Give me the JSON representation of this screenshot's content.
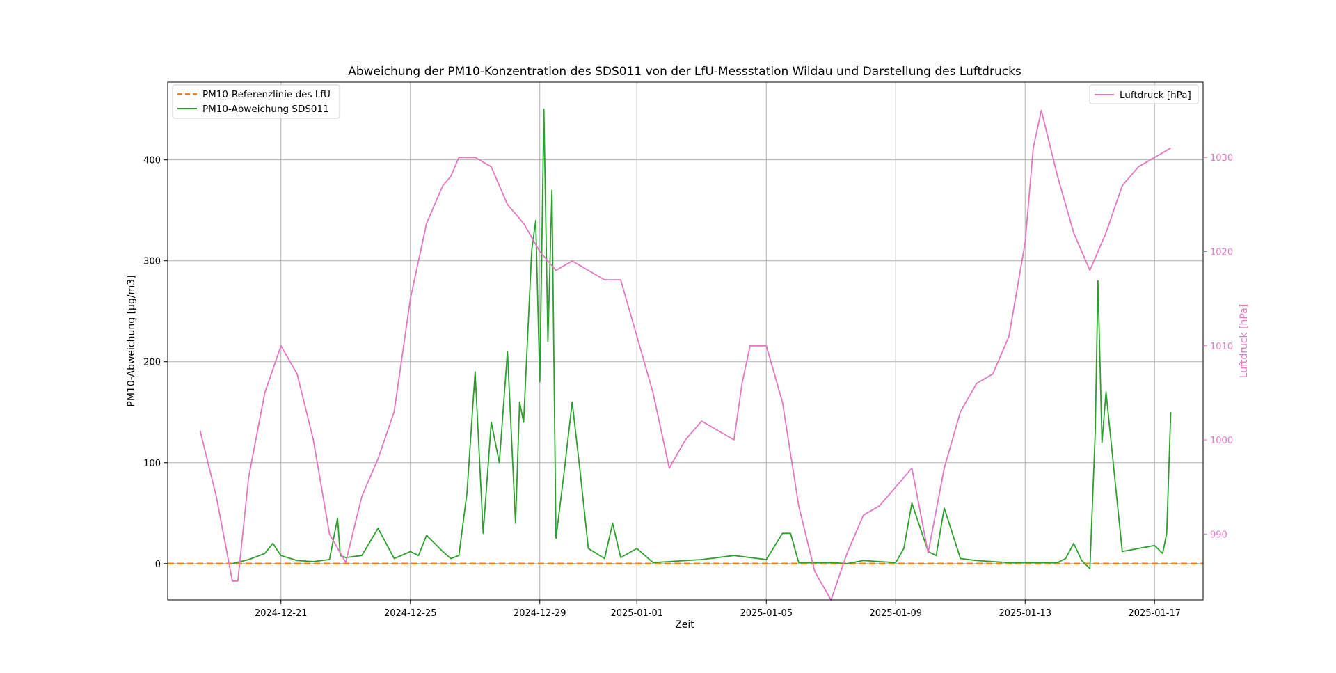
{
  "chart_data": {
    "type": "line",
    "title": "Abweichung der PM10-Konzentration des SDS011 von der LfU-Messstation Wildau und Darstellung des Luftdrucks",
    "xlabel": "Zeit",
    "ylabel": "PM10-Abweichung [µg/m3]",
    "y2label": "Luftdruck [hPa]",
    "xlim": [
      "2024-12-17T12:00",
      "2025-01-18T12:00"
    ],
    "ylim": [
      -36,
      477
    ],
    "y2lim": [
      983,
      1038
    ],
    "x_ticks": [
      "2024-12-21",
      "2024-12-25",
      "2024-12-29",
      "2025-01-01",
      "2025-01-05",
      "2025-01-09",
      "2025-01-13",
      "2025-01-17"
    ],
    "y_ticks": [
      0,
      100,
      200,
      300,
      400
    ],
    "y2_ticks": [
      990,
      1000,
      1010,
      1020,
      1030
    ],
    "grid": true,
    "colors": {
      "reference": "#ff7f0e",
      "deviation": "#2ca02c",
      "pressure": "#e377c2"
    },
    "legend_left": {
      "placement": "top-left",
      "entries": [
        "PM10-Referenzlinie des LfU",
        "PM10-Abweichung SDS011"
      ]
    },
    "legend_right": {
      "placement": "top-right",
      "entries": [
        "Luftdruck [hPa]"
      ]
    },
    "series": [
      {
        "name": "PM10-Referenzlinie des LfU",
        "axis": "left",
        "style": "dashed",
        "x": [
          "2024-12-17T12:00",
          "2025-01-18T12:00"
        ],
        "y": [
          0,
          0
        ]
      },
      {
        "name": "PM10-Abweichung SDS011",
        "axis": "left",
        "x": [
          "2024-12-19T12:00",
          "2024-12-20T00:00",
          "2024-12-20T12:00",
          "2024-12-20T18:00",
          "2024-12-21T00:00",
          "2024-12-21T12:00",
          "2024-12-22T00:00",
          "2024-12-22T12:00",
          "2024-12-22T18:00",
          "2024-12-22T20:00",
          "2024-12-23T00:00",
          "2024-12-23T12:00",
          "2024-12-24T00:00",
          "2024-12-24T12:00",
          "2024-12-25T00:00",
          "2024-12-25T06:00",
          "2024-12-25T12:00",
          "2024-12-26T00:00",
          "2024-12-26T06:00",
          "2024-12-26T12:00",
          "2024-12-26T18:00",
          "2024-12-27T00:00",
          "2024-12-27T06:00",
          "2024-12-27T12:00",
          "2024-12-27T18:00",
          "2024-12-28T00:00",
          "2024-12-28T06:00",
          "2024-12-28T09:00",
          "2024-12-28T12:00",
          "2024-12-28T18:00",
          "2024-12-28T21:00",
          "2024-12-29T00:00",
          "2024-12-29T03:00",
          "2024-12-29T06:00",
          "2024-12-29T09:00",
          "2024-12-29T12:00",
          "2024-12-29T18:00",
          "2024-12-30T00:00",
          "2024-12-30T06:00",
          "2024-12-30T12:00",
          "2024-12-31T00:00",
          "2024-12-31T06:00",
          "2024-12-31T12:00",
          "2025-01-01T00:00",
          "2025-01-01T12:00",
          "2025-01-02T00:00",
          "2025-01-02T12:00",
          "2025-01-03T00:00",
          "2025-01-04T00:00",
          "2025-01-05T00:00",
          "2025-01-05T12:00",
          "2025-01-05T18:00",
          "2025-01-06T00:00",
          "2025-01-06T12:00",
          "2025-01-07T00:00",
          "2025-01-07T12:00",
          "2025-01-08T00:00",
          "2025-01-08T12:00",
          "2025-01-09T00:00",
          "2025-01-09T06:00",
          "2025-01-09T12:00",
          "2025-01-10T00:00",
          "2025-01-10T06:00",
          "2025-01-10T12:00",
          "2025-01-11T00:00",
          "2025-01-11T12:00",
          "2025-01-12T00:00",
          "2025-01-12T12:00",
          "2025-01-13T00:00",
          "2025-01-13T12:00",
          "2025-01-14T00:00",
          "2025-01-14T06:00",
          "2025-01-14T12:00",
          "2025-01-14T18:00",
          "2025-01-15T00:00",
          "2025-01-15T04:00",
          "2025-01-15T06:00",
          "2025-01-15T09:00",
          "2025-01-15T12:00",
          "2025-01-16T00:00",
          "2025-01-16T12:00",
          "2025-01-17T00:00",
          "2025-01-17T06:00",
          "2025-01-17T09:00",
          "2025-01-17T12:00"
        ],
        "y": [
          0,
          4,
          10,
          20,
          8,
          3,
          2,
          4,
          45,
          8,
          6,
          8,
          35,
          5,
          12,
          8,
          28,
          12,
          5,
          8,
          70,
          190,
          30,
          140,
          100,
          210,
          40,
          160,
          140,
          310,
          340,
          180,
          450,
          220,
          370,
          25,
          90,
          160,
          90,
          15,
          5,
          40,
          6,
          15,
          1,
          2,
          3,
          4,
          8,
          4,
          30,
          30,
          1,
          1,
          1,
          0,
          3,
          2,
          1,
          15,
          60,
          12,
          8,
          55,
          5,
          3,
          2,
          1,
          1,
          1,
          1,
          5,
          20,
          3,
          -5,
          130,
          280,
          120,
          170,
          12,
          15,
          18,
          10,
          30,
          150
        ]
      },
      {
        "name": "Luftdruck [hPa]",
        "axis": "right",
        "x": [
          "2024-12-18T12:00",
          "2024-12-19T00:00",
          "2024-12-19T12:00",
          "2024-12-19T16:00",
          "2024-12-20T00:00",
          "2024-12-20T12:00",
          "2024-12-21T00:00",
          "2024-12-21T12:00",
          "2024-12-22T00:00",
          "2024-12-22T12:00",
          "2024-12-23T00:00",
          "2024-12-23T12:00",
          "2024-12-24T00:00",
          "2024-12-24T12:00",
          "2024-12-25T00:00",
          "2024-12-25T12:00",
          "2024-12-26T00:00",
          "2024-12-26T06:00",
          "2024-12-26T12:00",
          "2024-12-27T00:00",
          "2024-12-27T12:00",
          "2024-12-28T00:00",
          "2024-12-28T12:00",
          "2024-12-29T00:00",
          "2024-12-29T12:00",
          "2024-12-30T00:00",
          "2024-12-30T12:00",
          "2024-12-31T00:00",
          "2024-12-31T12:00",
          "2025-01-01T00:00",
          "2025-01-01T12:00",
          "2025-01-02T00:00",
          "2025-01-02T12:00",
          "2025-01-03T00:00",
          "2025-01-03T12:00",
          "2025-01-04T00:00",
          "2025-01-04T06:00",
          "2025-01-04T12:00",
          "2025-01-05T00:00",
          "2025-01-05T12:00",
          "2025-01-06T00:00",
          "2025-01-06T12:00",
          "2025-01-07T00:00",
          "2025-01-07T12:00",
          "2025-01-08T00:00",
          "2025-01-08T12:00",
          "2025-01-09T00:00",
          "2025-01-09T12:00",
          "2025-01-10T00:00",
          "2025-01-10T12:00",
          "2025-01-11T00:00",
          "2025-01-11T12:00",
          "2025-01-12T00:00",
          "2025-01-12T12:00",
          "2025-01-13T00:00",
          "2025-01-13T06:00",
          "2025-01-13T12:00",
          "2025-01-14T00:00",
          "2025-01-14T12:00",
          "2025-01-15T00:00",
          "2025-01-15T12:00",
          "2025-01-16T00:00",
          "2025-01-16T12:00",
          "2025-01-17T00:00",
          "2025-01-17T12:00"
        ],
        "y": [
          1001,
          994,
          985,
          985,
          996,
          1005,
          1010,
          1007,
          1000,
          990,
          987,
          994,
          998,
          1003,
          1015,
          1023,
          1027,
          1028,
          1030,
          1030,
          1029,
          1025,
          1023,
          1020,
          1018,
          1019,
          1018,
          1017,
          1017,
          1011,
          1005,
          997,
          1000,
          1002,
          1001,
          1000,
          1006,
          1010,
          1010,
          1004,
          993,
          986,
          983,
          988,
          992,
          993,
          995,
          997,
          988,
          997,
          1003,
          1006,
          1007,
          1011,
          1021,
          1031,
          1035,
          1028,
          1022,
          1018,
          1022,
          1027,
          1029,
          1030,
          1031
        ]
      }
    ]
  }
}
